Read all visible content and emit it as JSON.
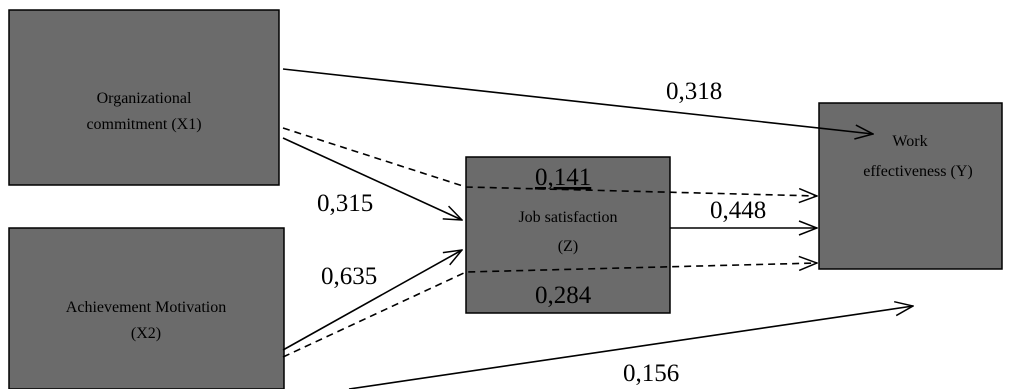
{
  "colors": {
    "box_fill": "#6b6b6b",
    "line": "#000000",
    "background": "#ffffff"
  },
  "nodes": {
    "x1": {
      "line1": "Organizational",
      "line2": "commitment (X1)"
    },
    "x2": {
      "line1": "Achievement Motivation",
      "line2": "(X2)"
    },
    "z": {
      "line1": "Job satisfaction",
      "line2": "(Z)"
    },
    "y": {
      "line1": "Work",
      "line2": "effectiveness (Y)"
    }
  },
  "paths": {
    "x1_y": {
      "value": "0,318",
      "style": "solid"
    },
    "x1_z": {
      "value": "0,315",
      "style": "solid"
    },
    "x1_z_y": {
      "value": "0,141",
      "style": "dashed"
    },
    "z_y": {
      "value": "0,448",
      "style": "solid"
    },
    "x2_z": {
      "value": "0,635",
      "style": "solid"
    },
    "x2_z_y": {
      "value": "0,284",
      "style": "dashed"
    },
    "x2_y": {
      "value": "0,156",
      "style": "solid"
    }
  }
}
